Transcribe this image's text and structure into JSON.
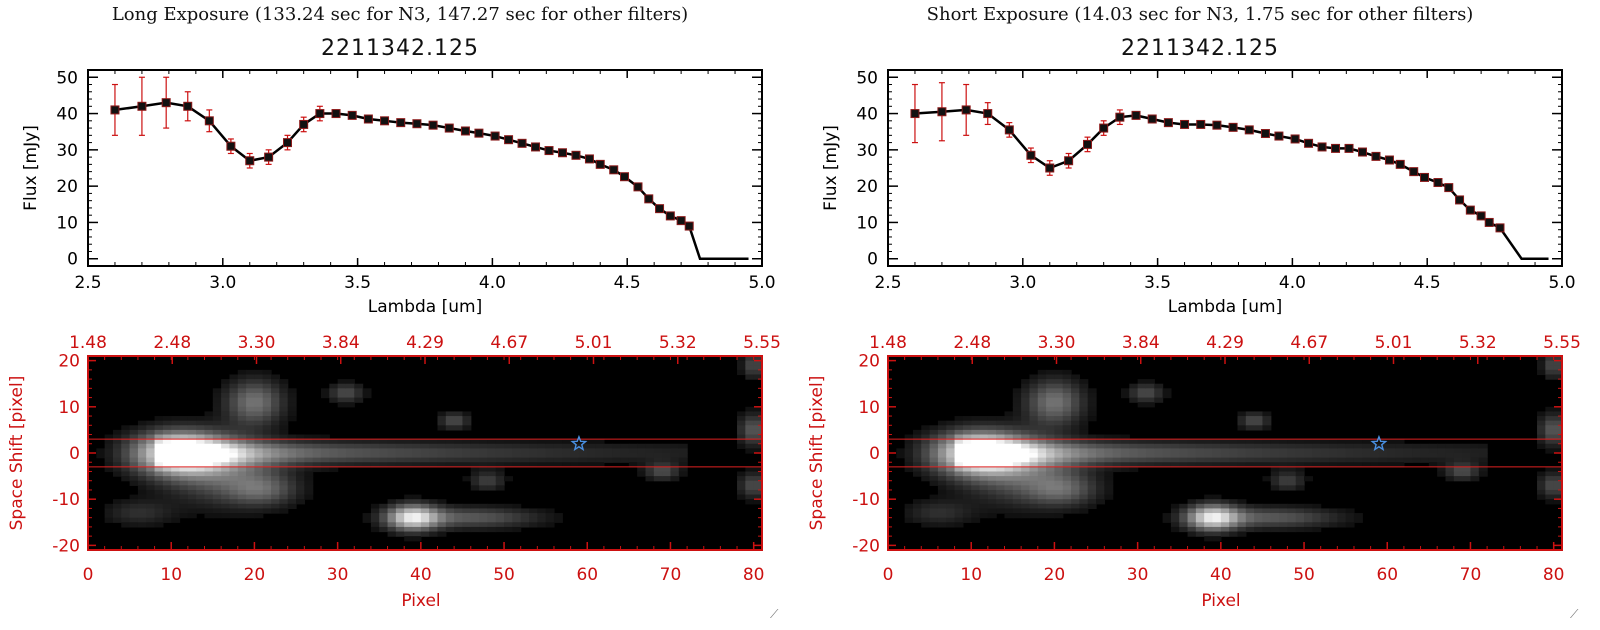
{
  "panels": [
    {
      "id": "long",
      "exposure_title": "Long Exposure (133.24 sec for N3, 147.27 sec for other filters)",
      "object_title": "2211342.125"
    },
    {
      "id": "short",
      "exposure_title": "Short Exposure (14.03 sec for N3, 1.75 sec for other filters)",
      "object_title": "2211342.125"
    }
  ],
  "chart_data": [
    {
      "type": "line",
      "panel": "long",
      "title": "2211342.125",
      "xlabel": "Lambda [um]",
      "ylabel": "Flux [mJy]",
      "xlim": [
        2.5,
        5.0
      ],
      "ylim": [
        -2,
        52
      ],
      "xticks": [
        "2.5",
        "3.0",
        "3.5",
        "4.0",
        "4.5",
        "5.0"
      ],
      "yticks": [
        "0",
        "10",
        "20",
        "30",
        "40",
        "50"
      ],
      "series": [
        {
          "x": [
            2.6,
            2.7,
            2.79,
            2.87,
            2.95,
            3.03,
            3.1,
            3.17,
            3.24,
            3.3,
            3.36,
            3.42,
            3.48,
            3.54,
            3.6,
            3.66,
            3.72,
            3.78,
            3.84,
            3.9,
            3.95,
            4.01,
            4.06,
            4.11,
            4.16,
            4.21,
            4.26,
            4.31,
            4.36,
            4.4,
            4.45,
            4.49,
            4.54,
            4.58,
            4.62,
            4.66,
            4.7,
            4.73,
            4.77,
            4.85,
            4.95
          ],
          "y": [
            41,
            42,
            43,
            42,
            38,
            31,
            27,
            28,
            32,
            37,
            40,
            40,
            39.5,
            38.5,
            38,
            37.5,
            37.2,
            36.8,
            36,
            35.2,
            34.6,
            33.8,
            32.8,
            31.8,
            30.8,
            29.8,
            29.2,
            28.5,
            27.5,
            26,
            24.5,
            22.6,
            19.8,
            16.5,
            13.8,
            11.8,
            10.5,
            9,
            0,
            0,
            0
          ],
          "yerr": [
            7,
            8,
            7,
            4,
            3,
            2,
            2,
            2,
            2,
            2,
            2,
            1,
            0.6,
            0.6,
            0.6,
            0.6,
            0.6,
            0.6,
            0.6,
            0.6,
            0.6,
            0.6,
            0.6,
            0.6,
            0.6,
            0.6,
            0.6,
            0.6,
            0.6,
            0.6,
            0.6,
            0.6,
            0.6,
            0.6,
            0.6,
            0.6,
            0.6,
            0.6,
            0,
            0,
            0
          ]
        }
      ]
    },
    {
      "type": "line",
      "panel": "short",
      "title": "2211342.125",
      "xlabel": "Lambda [um]",
      "ylabel": "Flux [mJy]",
      "xlim": [
        2.5,
        5.0
      ],
      "ylim": [
        -2,
        52
      ],
      "xticks": [
        "2.5",
        "3.0",
        "3.5",
        "4.0",
        "4.5",
        "5.0"
      ],
      "yticks": [
        "0",
        "10",
        "20",
        "30",
        "40",
        "50"
      ],
      "series": [
        {
          "x": [
            2.6,
            2.7,
            2.79,
            2.87,
            2.95,
            3.03,
            3.1,
            3.17,
            3.24,
            3.3,
            3.36,
            3.42,
            3.48,
            3.54,
            3.6,
            3.66,
            3.72,
            3.78,
            3.84,
            3.9,
            3.95,
            4.01,
            4.06,
            4.11,
            4.16,
            4.21,
            4.26,
            4.31,
            4.36,
            4.4,
            4.45,
            4.49,
            4.54,
            4.58,
            4.62,
            4.66,
            4.7,
            4.73,
            4.77,
            4.85,
            4.95
          ],
          "y": [
            40,
            40.5,
            41,
            40,
            35.5,
            28.5,
            25,
            27,
            31.5,
            36,
            39,
            39.5,
            38.5,
            37.5,
            37,
            37,
            36.8,
            36.2,
            35.5,
            34.5,
            33.8,
            33,
            31.8,
            30.8,
            30.4,
            30.4,
            29.4,
            28.2,
            27.2,
            26,
            24,
            22.4,
            21,
            19.6,
            16.2,
            13.4,
            11.8,
            10,
            8.5,
            0,
            0
          ],
          "yerr": [
            8,
            8,
            7,
            3,
            2,
            2,
            2,
            2,
            2,
            2,
            2,
            1,
            0.6,
            0.6,
            0.6,
            0.6,
            0.6,
            0.6,
            0.6,
            0.6,
            0.6,
            0.6,
            0.6,
            0.6,
            0.6,
            0.6,
            0.6,
            0.6,
            0.6,
            0.6,
            0.6,
            0.6,
            0.6,
            0.6,
            0.6,
            0.6,
            0.6,
            0.6,
            0.6,
            0,
            0
          ]
        }
      ]
    },
    {
      "type": "heatmap",
      "panel": "long",
      "xlabel": "Pixel",
      "ylabel": "Space Shift [pixel]",
      "xlim": [
        0,
        81
      ],
      "ylim": [
        -21,
        21
      ],
      "xticks": [
        "0",
        "10",
        "20",
        "30",
        "40",
        "50",
        "60",
        "70",
        "80"
      ],
      "yticks": [
        "-20",
        "-10",
        "0",
        "10",
        "20"
      ],
      "top_axis_ticks": [
        "1.48",
        "2.48",
        "3.30",
        "3.84",
        "4.29",
        "4.67",
        "5.01",
        "5.32",
        "5.55"
      ],
      "aperture_lines": [
        3,
        -3
      ],
      "star_marker": {
        "x": 59,
        "y": 2,
        "color": "#4a90e2"
      },
      "colors": {
        "axis": "#cc1111",
        "background": "#000000"
      }
    },
    {
      "type": "heatmap",
      "panel": "short",
      "xlabel": "Pixel",
      "ylabel": "Space Shift [pixel]",
      "xlim": [
        0,
        81
      ],
      "ylim": [
        -21,
        21
      ],
      "xticks": [
        "0",
        "10",
        "20",
        "30",
        "40",
        "50",
        "60",
        "70",
        "80"
      ],
      "yticks": [
        "-20",
        "-10",
        "0",
        "10",
        "20"
      ],
      "top_axis_ticks": [
        "1.48",
        "2.48",
        "3.30",
        "3.84",
        "4.29",
        "4.67",
        "5.01",
        "5.32",
        "5.55"
      ],
      "aperture_lines": [
        3,
        -3
      ],
      "star_marker": {
        "x": 59,
        "y": 2,
        "color": "#4a90e2"
      },
      "colors": {
        "axis": "#cc1111",
        "background": "#000000"
      }
    }
  ]
}
